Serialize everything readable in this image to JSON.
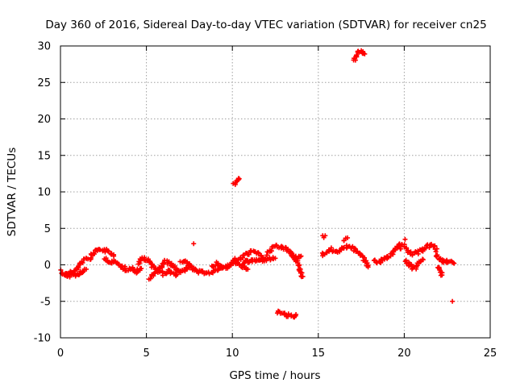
{
  "chart_data": {
    "type": "scatter",
    "title": "Day 360 of 2016, Sidereal Day-to-day VTEC variation (SDTVAR) for receiver cn25",
    "xlabel": "GPS time / hours",
    "ylabel": "SDTVAR / TECUs",
    "xlim": [
      0,
      25
    ],
    "ylim": [
      -10,
      30
    ],
    "xticks": [
      0,
      5,
      10,
      15,
      20,
      25
    ],
    "yticks": [
      -10,
      -5,
      0,
      5,
      10,
      15,
      20,
      25,
      30
    ],
    "grid": true,
    "marker": "+",
    "color": "#ff0000",
    "series": [
      {
        "name": "SDTVAR",
        "segments": [
          [
            [
              0.0,
              -0.8
            ],
            [
              0.2,
              -1.2
            ],
            [
              0.5,
              -1.5
            ],
            [
              0.8,
              -1.0
            ],
            [
              1.0,
              -0.3
            ],
            [
              1.3,
              0.5
            ],
            [
              1.6,
              0.8
            ]
          ],
          [
            [
              0.3,
              -1.6
            ],
            [
              0.6,
              -0.9
            ],
            [
              0.9,
              -1.4
            ],
            [
              1.2,
              -1.0
            ],
            [
              1.5,
              -0.6
            ]
          ],
          [
            [
              1.7,
              0.9
            ],
            [
              1.9,
              1.6
            ],
            [
              2.1,
              2.0
            ],
            [
              2.4,
              2.1
            ],
            [
              2.7,
              1.9
            ],
            [
              2.9,
              1.6
            ],
            [
              3.1,
              1.2
            ]
          ],
          [
            [
              2.6,
              1.0
            ],
            [
              2.9,
              0.3
            ],
            [
              3.2,
              0.4
            ],
            [
              3.5,
              -0.2
            ],
            [
              3.8,
              -0.6
            ],
            [
              4.1,
              -0.4
            ],
            [
              4.4,
              -0.9
            ],
            [
              4.7,
              -0.5
            ]
          ],
          [
            [
              4.5,
              0.2
            ],
            [
              4.8,
              0.9
            ],
            [
              5.1,
              0.6
            ],
            [
              5.4,
              -0.2
            ],
            [
              5.7,
              -0.8
            ],
            [
              6.0,
              -1.2
            ],
            [
              6.3,
              -0.8
            ],
            [
              6.6,
              -1.4
            ],
            [
              6.9,
              -1.0
            ]
          ],
          [
            [
              5.2,
              -1.8
            ],
            [
              5.5,
              -1.3
            ],
            [
              5.8,
              -0.5
            ],
            [
              6.1,
              0.4
            ],
            [
              6.4,
              0.2
            ],
            [
              6.7,
              -0.5
            ],
            [
              7.0,
              -0.9
            ],
            [
              7.3,
              -0.5
            ],
            [
              7.6,
              -0.2
            ]
          ],
          [
            [
              7.0,
              0.2
            ],
            [
              7.3,
              0.5
            ],
            [
              7.6,
              -0.4
            ],
            [
              7.9,
              -0.9
            ],
            [
              8.2,
              -1.1
            ],
            [
              8.5,
              -0.9
            ],
            [
              8.8,
              -1.2
            ],
            [
              9.1,
              -0.6
            ],
            [
              9.4,
              -0.3
            ]
          ],
          [
            [
              8.8,
              -0.2
            ],
            [
              9.1,
              0.2
            ],
            [
              9.4,
              -0.5
            ],
            [
              9.7,
              -0.3
            ],
            [
              10.0,
              0.4
            ],
            [
              10.3,
              0.2
            ],
            [
              10.6,
              -0.2
            ],
            [
              10.9,
              -0.6
            ]
          ],
          [
            [
              10.0,
              0.8
            ],
            [
              10.3,
              0.5
            ],
            [
              10.6,
              1.2
            ],
            [
              10.9,
              1.6
            ],
            [
              11.2,
              1.8
            ],
            [
              11.5,
              1.5
            ],
            [
              11.8,
              1.0
            ]
          ],
          [
            [
              10.6,
              0.3
            ],
            [
              11.0,
              0.5
            ],
            [
              11.4,
              0.6
            ],
            [
              11.8,
              0.7
            ],
            [
              12.2,
              0.8
            ],
            [
              12.5,
              0.9
            ]
          ],
          [
            [
              12.0,
              1.5
            ],
            [
              12.3,
              2.2
            ],
            [
              12.6,
              2.5
            ],
            [
              12.9,
              2.4
            ],
            [
              13.2,
              2.1
            ],
            [
              13.4,
              1.6
            ],
            [
              13.6,
              1.0
            ],
            [
              13.8,
              0.3
            ],
            [
              13.9,
              -0.6
            ],
            [
              14.0,
              -1.2
            ],
            [
              14.1,
              -1.6
            ]
          ],
          [
            [
              12.6,
              -6.4
            ],
            [
              12.9,
              -6.7
            ],
            [
              13.2,
              -6.9
            ],
            [
              13.5,
              -7.0
            ],
            [
              13.7,
              -6.8
            ]
          ],
          [
            [
              13.4,
              1.1
            ],
            [
              13.7,
              1.0
            ],
            [
              14.0,
              1.2
            ]
          ],
          [
            [
              15.2,
              1.4
            ],
            [
              15.5,
              1.8
            ],
            [
              15.8,
              2.1
            ],
            [
              16.1,
              1.8
            ],
            [
              16.4,
              2.2
            ],
            [
              16.7,
              2.6
            ],
            [
              17.0,
              2.3
            ],
            [
              17.3,
              1.8
            ],
            [
              17.6,
              1.0
            ],
            [
              17.8,
              0.3
            ],
            [
              17.9,
              -0.3
            ]
          ],
          [
            [
              15.3,
              3.8
            ],
            [
              15.4,
              4.0
            ]
          ],
          [
            [
              16.5,
              3.5
            ],
            [
              16.7,
              3.7
            ]
          ],
          [
            [
              17.1,
              28.0
            ],
            [
              17.3,
              29.1
            ],
            [
              17.5,
              29.3
            ],
            [
              17.7,
              28.9
            ]
          ],
          [
            [
              18.2,
              0.6
            ],
            [
              18.5,
              0.3
            ],
            [
              18.8,
              0.8
            ],
            [
              19.1,
              1.2
            ],
            [
              19.4,
              1.8
            ],
            [
              19.7,
              2.8
            ],
            [
              19.8,
              2.2
            ]
          ],
          [
            [
              19.9,
              2.9
            ],
            [
              20.1,
              2.2
            ],
            [
              20.4,
              1.5
            ],
            [
              20.7,
              1.6
            ],
            [
              21.0,
              2.0
            ],
            [
              21.3,
              2.5
            ],
            [
              21.6,
              2.7
            ],
            [
              21.9,
              2.2
            ]
          ],
          [
            [
              20.1,
              0.5
            ],
            [
              20.4,
              -0.2
            ],
            [
              20.6,
              -0.5
            ],
            [
              20.9,
              0.3
            ],
            [
              21.1,
              0.7
            ]
          ],
          [
            [
              21.8,
              1.6
            ],
            [
              22.0,
              1.0
            ],
            [
              22.2,
              0.5
            ],
            [
              22.4,
              0.6
            ],
            [
              22.6,
              0.4
            ],
            [
              22.9,
              0.2
            ]
          ],
          [
            [
              22.0,
              -0.3
            ],
            [
              22.1,
              -0.9
            ],
            [
              22.2,
              -1.4
            ]
          ],
          [
            [
              10.1,
              11.0
            ],
            [
              10.3,
              11.5
            ],
            [
              10.4,
              11.8
            ]
          ]
        ],
        "isolated": [
          [
            7.75,
            2.9
          ],
          [
            20.05,
            3.5
          ],
          [
            22.8,
            -5.0
          ]
        ]
      }
    ]
  }
}
